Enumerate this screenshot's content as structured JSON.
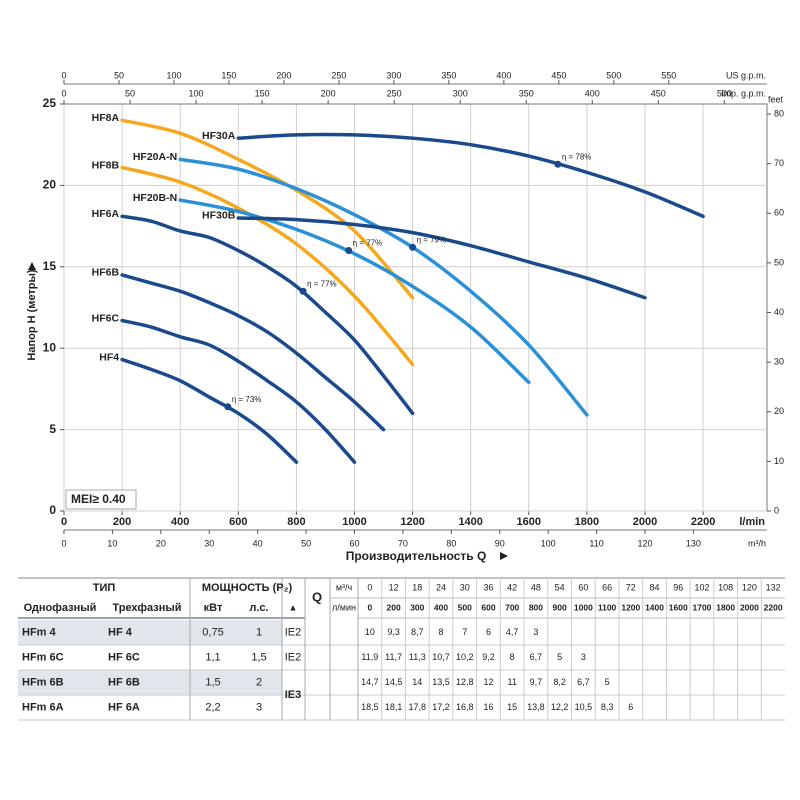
{
  "chart_data": {
    "type": "line",
    "xlabel": "Производительность Q",
    "ylabel": "Напор H (метры)",
    "x_unit": "l/min",
    "xlim": [
      0,
      2420
    ],
    "ylim": [
      0,
      25
    ],
    "xticks": [
      0,
      200,
      400,
      600,
      800,
      1000,
      1200,
      1400,
      1600,
      1800,
      2000,
      2200
    ],
    "yticks": [
      0,
      5,
      10,
      15,
      20,
      25
    ],
    "y2label": "feet",
    "y2lim": [
      0,
      82.02
    ],
    "y2ticks": [
      0,
      10,
      20,
      30,
      40,
      50,
      60,
      70,
      80
    ],
    "secondary_axes": {
      "us_gpm": {
        "label": "US g.p.m.",
        "lim": [
          0,
          639.3
        ],
        "ticks": [
          0,
          50,
          100,
          150,
          200,
          250,
          300,
          350,
          400,
          450,
          500,
          550
        ]
      },
      "imp_gpm": {
        "label": "Imp. g.p.m.",
        "lim": [
          0,
          532.3
        ],
        "ticks": [
          0,
          50,
          100,
          150,
          200,
          250,
          300,
          350,
          400,
          450,
          500
        ]
      },
      "m3h": {
        "label": "m³/h",
        "lim": [
          0,
          145.2
        ],
        "ticks": [
          0,
          10,
          20,
          30,
          40,
          50,
          60,
          70,
          80,
          90,
          100,
          110,
          120,
          130
        ]
      }
    },
    "grid": true,
    "series": [
      {
        "name": "HF8A",
        "color": "#f5a81f",
        "x": [
          200,
          400,
          600,
          800,
          1000,
          1200
        ],
        "values": [
          24.0,
          23.2,
          21.6,
          19.7,
          17.2,
          13.1
        ]
      },
      {
        "name": "HF8B",
        "color": "#f5a81f",
        "x": [
          200,
          400,
          600,
          800,
          1000,
          1200
        ],
        "values": [
          21.1,
          20.2,
          18.6,
          16.4,
          13.2,
          9.0
        ]
      },
      {
        "name": "HF20A-N",
        "color": "#2b90d5",
        "x": [
          400,
          600,
          800,
          1000,
          1200,
          1400,
          1600,
          1800
        ],
        "values": [
          21.6,
          21.0,
          19.8,
          18.2,
          16.2,
          13.5,
          10.2,
          5.9
        ]
      },
      {
        "name": "HF20B-N",
        "color": "#2b90d5",
        "x": [
          400,
          600,
          800,
          1000,
          1200,
          1400,
          1600
        ],
        "values": [
          19.1,
          18.4,
          17.3,
          15.8,
          13.8,
          11.3,
          7.9
        ]
      },
      {
        "name": "HF30A",
        "color": "#1a4a8c",
        "x": [
          600,
          800,
          1000,
          1200,
          1400,
          1600,
          1800,
          2000,
          2200
        ],
        "values": [
          22.9,
          23.1,
          23.1,
          22.9,
          22.5,
          21.8,
          20.8,
          19.6,
          18.1
        ]
      },
      {
        "name": "HF30B",
        "color": "#1a4a8c",
        "x": [
          600,
          800,
          1000,
          1200,
          1400,
          1600,
          1800,
          2000
        ],
        "values": [
          18.0,
          17.9,
          17.6,
          17.1,
          16.3,
          15.3,
          14.3,
          13.1
        ]
      },
      {
        "name": "HF6A",
        "color": "#1a4a8c",
        "x": [
          200,
          300,
          400,
          500,
          600,
          700,
          800,
          900,
          1000,
          1100,
          1200
        ],
        "values": [
          18.1,
          17.8,
          17.2,
          16.8,
          16,
          15,
          13.8,
          12.2,
          10.5,
          8.3,
          6
        ]
      },
      {
        "name": "HF6B",
        "color": "#1a4a8c",
        "x": [
          200,
          300,
          400,
          500,
          600,
          700,
          800,
          900,
          1000,
          1100
        ],
        "values": [
          14.5,
          14,
          13.5,
          12.8,
          12,
          11,
          9.7,
          8.2,
          6.7,
          5
        ]
      },
      {
        "name": "HF6C",
        "color": "#1a4a8c",
        "x": [
          200,
          300,
          400,
          500,
          600,
          700,
          800,
          900,
          1000
        ],
        "values": [
          11.7,
          11.3,
          10.7,
          10.2,
          9.2,
          8,
          6.7,
          5,
          3
        ]
      },
      {
        "name": "HF4",
        "color": "#1a4a8c",
        "x": [
          200,
          300,
          400,
          500,
          600,
          700,
          800
        ],
        "values": [
          9.3,
          8.7,
          8,
          7,
          6,
          4.7,
          3
        ]
      }
    ],
    "annotations": [
      {
        "text": "η = 73%",
        "x": 564,
        "y": 6.4
      },
      {
        "text": "η = 77%",
        "x": 823,
        "y": 13.5
      },
      {
        "text": "η = 77%",
        "x": 980,
        "y": 16.0
      },
      {
        "text": "η = 79%",
        "x": 1200,
        "y": 16.2
      },
      {
        "text": "η = 78%",
        "x": 1700,
        "y": 21.3
      }
    ],
    "mei_label": "MEI≥ 0.40"
  },
  "table": {
    "header": {
      "type": "ТИП",
      "power": "МОЩНОСТЬ (P₂)",
      "q": "Q",
      "unit_m3h": "м³/ч",
      "unit_lmin": "л/мин",
      "single": "Однофазный",
      "three": "Трехфазный",
      "kw": "кВт",
      "hp": "л.с.",
      "class": "▲"
    },
    "flow_m3h": [
      0,
      12,
      18,
      24,
      30,
      36,
      42,
      48,
      54,
      60,
      66,
      72,
      84,
      96,
      102,
      108,
      120,
      132
    ],
    "flow_lmin": [
      0,
      200,
      300,
      400,
      500,
      600,
      700,
      800,
      900,
      1000,
      1100,
      1200,
      1400,
      1600,
      1700,
      1800,
      2000,
      2200
    ],
    "rows": [
      {
        "single": "HFm 4",
        "three": "HF 4",
        "kw": "0,75",
        "hp": "1",
        "ie": "IE2",
        "values": [
          "10",
          "9,3",
          "8,7",
          "8",
          "7",
          "6",
          "4,7",
          "3"
        ]
      },
      {
        "single": "HFm 6C",
        "three": "HF 6C",
        "kw": "1,1",
        "hp": "1,5",
        "ie": "IE2",
        "values": [
          "11,9",
          "11,7",
          "11,3",
          "10,7",
          "10,2",
          "9,2",
          "8",
          "6,7",
          "5",
          "3"
        ]
      },
      {
        "single": "HFm 6B",
        "three": "HF 6B",
        "kw": "1,5",
        "hp": "2",
        "ie": "IE3",
        "values": [
          "14,7",
          "14,5",
          "14",
          "13,5",
          "12,8",
          "12",
          "11",
          "9,7",
          "8,2",
          "6,7",
          "5"
        ]
      },
      {
        "single": "HFm 6A",
        "three": "HF 6A",
        "kw": "2,2",
        "hp": "3",
        "values": [
          "18,5",
          "18,1",
          "17,8",
          "17,2",
          "16,8",
          "16",
          "15",
          "13,8",
          "12,2",
          "10,5",
          "8,3",
          "6"
        ]
      }
    ]
  }
}
